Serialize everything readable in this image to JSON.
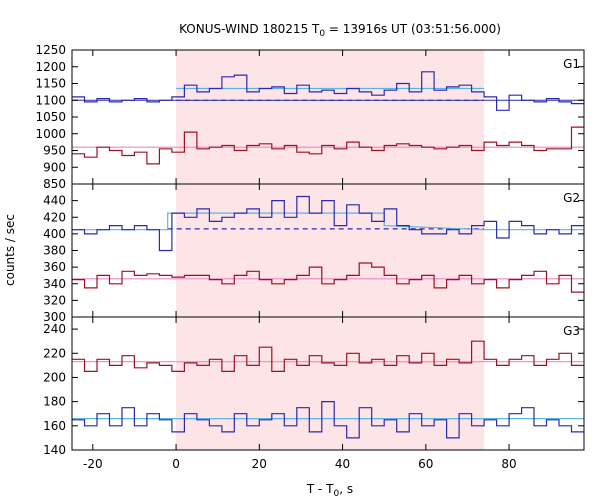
{
  "chart_data": {
    "type": "line",
    "title_main": "KONUS-WIND 180215 T",
    "title_sub": "0",
    "title_rest": " = 13916s UT (03:51:56.000)",
    "xlabel_main": "T - T",
    "xlabel_sub": "0",
    "xlabel_rest": ", s",
    "ylabel": "counts / sec",
    "xlim": [
      -25,
      98
    ],
    "x_ticks": [
      -20,
      0,
      20,
      40,
      60,
      80
    ],
    "x_tick_labels": [
      "-20",
      "0",
      "20",
      "40",
      "60",
      "80"
    ],
    "highlight_interval": [
      0,
      74
    ],
    "colors": {
      "upper_series": "#2a2ab0",
      "lower_series": "#a01020",
      "fit_upper": "#5ab4e6",
      "fit_lower": "#ee88cc",
      "background_fit": "#2a2ab0",
      "highlight": "#fde4e6"
    },
    "step_edges": [
      -25,
      -22,
      -19,
      -16,
      -13,
      -10,
      -7,
      -4,
      -1,
      2,
      5,
      8,
      11,
      14,
      17,
      20,
      23,
      26,
      29,
      32,
      35,
      38,
      41,
      44,
      47,
      50,
      53,
      56,
      59,
      62,
      65,
      68,
      71,
      74,
      77,
      80,
      83,
      86,
      89,
      92,
      95,
      98
    ],
    "panels": [
      {
        "name": "G1",
        "ylim": [
          850,
          1250
        ],
        "y_ticks": [
          850,
          900,
          950,
          1000,
          1050,
          1100,
          1150,
          1200,
          1250
        ],
        "y_tick_labels": [
          "850",
          "900",
          "950",
          "1000",
          "1050",
          "1100",
          "1150",
          "1200",
          "1250"
        ],
        "series_upper": [
          1110,
          1095,
          1105,
          1095,
          1100,
          1105,
          1095,
          1100,
          1110,
          1145,
          1125,
          1135,
          1170,
          1175,
          1125,
          1135,
          1140,
          1120,
          1145,
          1125,
          1130,
          1120,
          1135,
          1125,
          1115,
          1130,
          1150,
          1125,
          1185,
          1130,
          1140,
          1145,
          1125,
          1110,
          1070,
          1115,
          1100,
          1095,
          1105,
          1095,
          1090
        ],
        "series_lower": [
          940,
          930,
          960,
          950,
          935,
          945,
          910,
          955,
          945,
          1005,
          955,
          960,
          965,
          950,
          965,
          970,
          955,
          965,
          945,
          940,
          965,
          955,
          975,
          960,
          950,
          965,
          970,
          965,
          960,
          955,
          960,
          965,
          950,
          975,
          965,
          975,
          965,
          950,
          955,
          955,
          1020
        ],
        "fit_upper": [
          {
            "x": 0,
            "y": 1135
          },
          {
            "x": 74,
            "y": 1135
          }
        ],
        "fit_lower": [
          {
            "x": -25,
            "y": 960
          },
          {
            "x": 98,
            "y": 960
          }
        ],
        "bg_solid": [
          {
            "x": -25,
            "y": 1100
          },
          {
            "x": 0,
            "y": 1100
          },
          {
            "x": 74,
            "y": 1100
          },
          {
            "x": 98,
            "y": 1100
          }
        ],
        "bg_dashed": [
          {
            "x": 0,
            "y": 1100
          },
          {
            "x": 74,
            "y": 1100
          }
        ]
      },
      {
        "name": "G2",
        "ylim": [
          300,
          460
        ],
        "y_ticks": [
          300,
          320,
          340,
          360,
          380,
          400,
          420,
          440
        ],
        "y_tick_labels": [
          "300",
          "320",
          "340",
          "360",
          "380",
          "400",
          "420",
          "440"
        ],
        "series_upper": [
          405,
          400,
          405,
          410,
          405,
          410,
          405,
          380,
          425,
          420,
          430,
          415,
          420,
          425,
          430,
          420,
          440,
          420,
          445,
          425,
          440,
          410,
          435,
          425,
          415,
          430,
          410,
          405,
          400,
          400,
          405,
          400,
          410,
          415,
          395,
          415,
          410,
          400,
          405,
          400,
          410
        ],
        "series_lower": [
          345,
          335,
          350,
          340,
          355,
          350,
          352,
          350,
          348,
          350,
          350,
          345,
          340,
          350,
          355,
          345,
          340,
          345,
          350,
          360,
          340,
          345,
          350,
          365,
          360,
          350,
          340,
          345,
          350,
          335,
          345,
          350,
          340,
          345,
          335,
          345,
          350,
          355,
          340,
          350,
          330
        ],
        "fit_upper": [
          {
            "x": -25,
            "y": 405
          },
          {
            "x": -2,
            "y": 405
          },
          {
            "x": -2,
            "y": 425
          },
          {
            "x": 50,
            "y": 425
          },
          {
            "x": 50,
            "y": 410
          },
          {
            "x": 74,
            "y": 405
          },
          {
            "x": 98,
            "y": 405
          }
        ],
        "fit_lower": [
          {
            "x": -25,
            "y": 346
          },
          {
            "x": 98,
            "y": 346
          }
        ],
        "bg_solid": [],
        "bg_dashed": [
          {
            "x": -2,
            "y": 406
          },
          {
            "x": 74,
            "y": 406
          }
        ]
      },
      {
        "name": "G3",
        "ylim": [
          140,
          250
        ],
        "y_ticks": [
          140,
          160,
          180,
          200,
          220,
          240
        ],
        "y_tick_labels": [
          "140",
          "160",
          "180",
          "200",
          "220",
          "240"
        ],
        "series_upper": [
          165,
          160,
          170,
          160,
          175,
          160,
          170,
          165,
          155,
          170,
          165,
          160,
          155,
          170,
          160,
          165,
          170,
          160,
          175,
          155,
          180,
          160,
          150,
          175,
          160,
          165,
          155,
          170,
          160,
          165,
          150,
          170,
          160,
          165,
          160,
          170,
          175,
          160,
          165,
          160,
          155
        ],
        "series_lower": [
          215,
          205,
          215,
          210,
          218,
          208,
          212,
          210,
          205,
          212,
          210,
          215,
          205,
          218,
          210,
          225,
          205,
          215,
          210,
          218,
          212,
          210,
          220,
          212,
          215,
          210,
          218,
          212,
          220,
          210,
          215,
          212,
          230,
          215,
          210,
          215,
          218,
          210,
          215,
          220,
          210
        ],
        "fit_upper": [
          {
            "x": -25,
            "y": 166
          },
          {
            "x": 98,
            "y": 166
          }
        ],
        "fit_lower": [
          {
            "x": -25,
            "y": 213
          },
          {
            "x": 98,
            "y": 213
          }
        ],
        "bg_solid": [],
        "bg_dashed": []
      }
    ]
  }
}
